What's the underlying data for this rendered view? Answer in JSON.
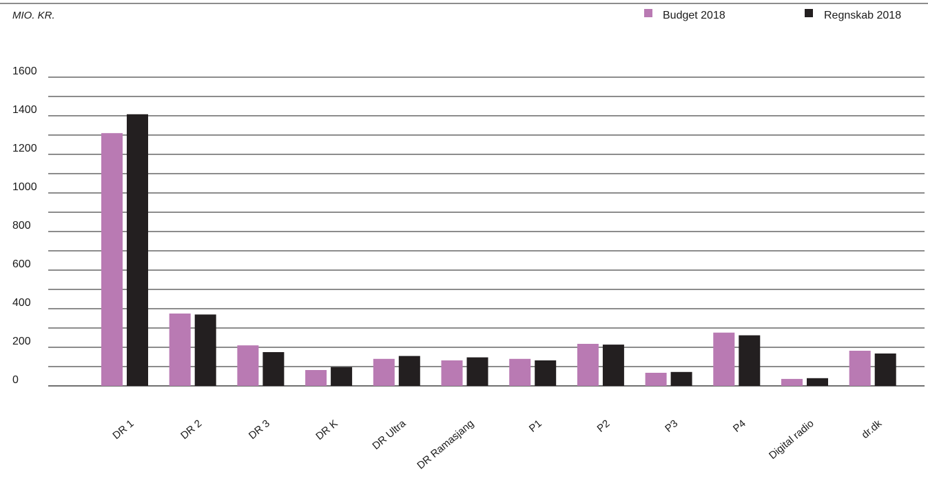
{
  "chart_data": {
    "type": "bar",
    "unit_label": "MIO. KR.",
    "categories": [
      "DR 1",
      "DR 2",
      "DR 3",
      "DR K",
      "DR Ultra",
      "DR Ramasjang",
      "P1",
      "P2",
      "P3",
      "P4",
      "Digital radio",
      "dr.dk"
    ],
    "series": [
      {
        "name": "Budget 2018",
        "color": "#b97ab3",
        "values": [
          1310,
          375,
          210,
          82,
          140,
          132,
          140,
          218,
          68,
          276,
          36,
          182
        ]
      },
      {
        "name": "Regnskab 2018",
        "color": "#231f20",
        "values": [
          1408,
          370,
          175,
          97,
          155,
          148,
          132,
          214,
          72,
          262,
          40,
          168
        ]
      }
    ],
    "y_ticks": [
      0,
      200,
      400,
      600,
      800,
      1000,
      1200,
      1400,
      1600
    ],
    "ylim": [
      0,
      1600
    ],
    "grid_step": 100,
    "grid": true,
    "legend_position": "top-right",
    "category_label_rotation": -40
  }
}
